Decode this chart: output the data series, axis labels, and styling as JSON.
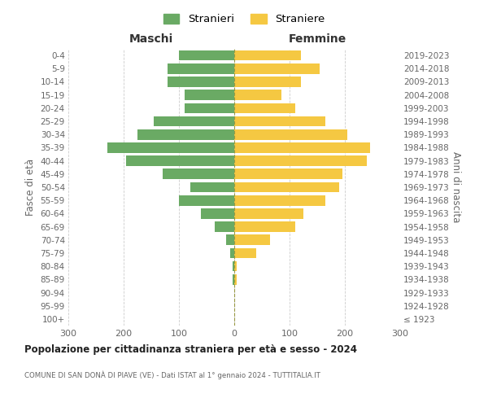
{
  "age_groups": [
    "100+",
    "95-99",
    "90-94",
    "85-89",
    "80-84",
    "75-79",
    "70-74",
    "65-69",
    "60-64",
    "55-59",
    "50-54",
    "45-49",
    "40-44",
    "35-39",
    "30-34",
    "25-29",
    "20-24",
    "15-19",
    "10-14",
    "5-9",
    "0-4"
  ],
  "birth_years": [
    "≤ 1923",
    "1924-1928",
    "1929-1933",
    "1934-1938",
    "1939-1943",
    "1944-1948",
    "1949-1953",
    "1954-1958",
    "1959-1963",
    "1964-1968",
    "1969-1973",
    "1974-1978",
    "1979-1983",
    "1984-1988",
    "1989-1993",
    "1994-1998",
    "1999-2003",
    "2004-2008",
    "2009-2013",
    "2014-2018",
    "2019-2023"
  ],
  "maschi": [
    0,
    0,
    0,
    3,
    3,
    8,
    15,
    35,
    60,
    100,
    80,
    130,
    195,
    230,
    175,
    145,
    90,
    90,
    120,
    120,
    100
  ],
  "femmine": [
    0,
    0,
    0,
    5,
    5,
    40,
    65,
    110,
    125,
    165,
    190,
    195,
    240,
    245,
    205,
    165,
    110,
    85,
    120,
    155,
    120
  ],
  "maschi_color": "#6aaa64",
  "femmine_color": "#f5c842",
  "bg_color": "#ffffff",
  "grid_color": "#cccccc",
  "title": "Popolazione per cittadinanza straniera per età e sesso - 2024",
  "subtitle": "COMUNE DI SAN DONÀ DI PIAVE (VE) - Dati ISTAT al 1° gennaio 2024 - TUTTITALIA.IT",
  "col_left": "Maschi",
  "col_right": "Femmine",
  "ylabel_left": "Fasce di età",
  "ylabel_right": "Anni di nascita",
  "legend_m": "Stranieri",
  "legend_f": "Straniere",
  "xlim": 300
}
